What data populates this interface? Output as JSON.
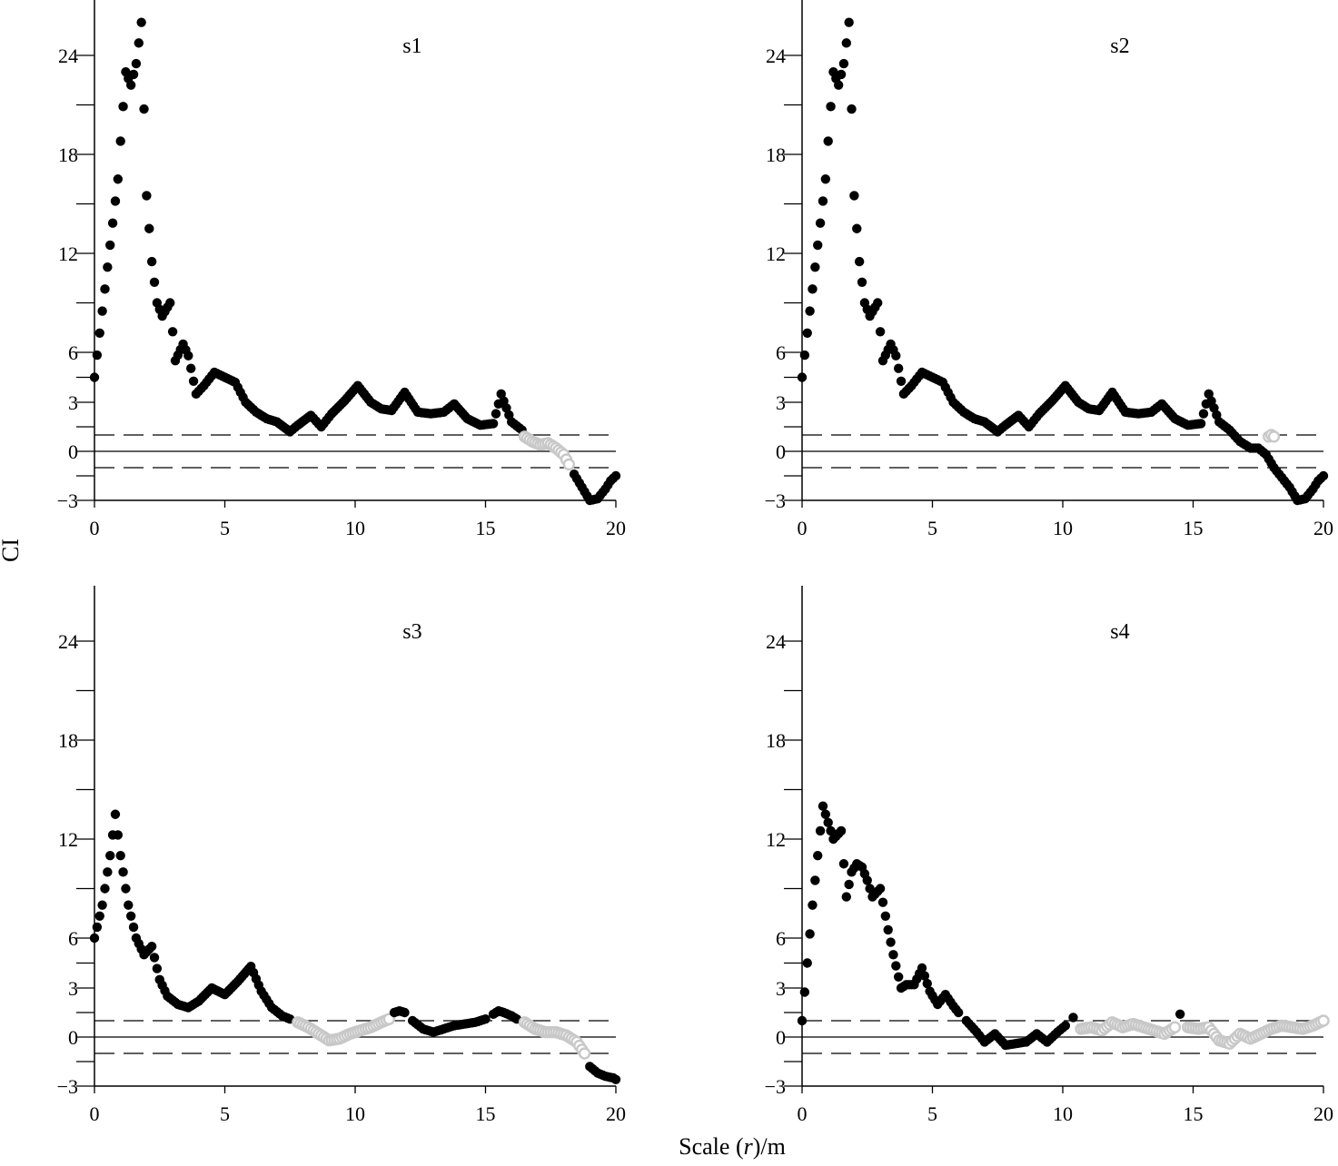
{
  "figure": {
    "xlabel_prefix": "Scale (",
    "xlabel_var": "r",
    "xlabel_suffix": ")/m",
    "ylabel": "CI"
  },
  "chart_data": [
    {
      "type": "scatter",
      "title": "s1",
      "xlim": [
        0,
        20
      ],
      "ylim": [
        -3,
        27
      ],
      "xticks": [
        0,
        5,
        10,
        15,
        20
      ],
      "yticks": [
        -3,
        0,
        3,
        6,
        12,
        18,
        24
      ],
      "ytick_labels": [
        "−3",
        "0",
        "3",
        "6",
        "12",
        "18",
        "24"
      ],
      "reference_lines": {
        "solid": 0,
        "dashed": [
          -1,
          1
        ]
      },
      "marker_colors": {
        "significant": "#000000",
        "not_significant": "#c8c8c8"
      },
      "series": [
        {
          "x": [
            0,
            0.3,
            0.6,
            0.9,
            1.0,
            1.2,
            1.4,
            1.6,
            1.8,
            2.0,
            2.2,
            2.4,
            2.6,
            2.9,
            3.1,
            3.4,
            3.6,
            3.9,
            4.2,
            4.6,
            5.0,
            5.4,
            5.8,
            6.2,
            6.6,
            7.0,
            7.5,
            7.8,
            8.3,
            8.7,
            9.1,
            9.6,
            10.1,
            10.6,
            11.0,
            11.4,
            11.9,
            12.4,
            12.9,
            13.4,
            13.8,
            14.3,
            14.8,
            15.3,
            15.6,
            16.0,
            16.4
          ],
          "y": [
            4.5,
            8.5,
            12.5,
            16.5,
            18.8,
            23.0,
            22.2,
            23.5,
            26.0,
            15.5,
            11.5,
            9.0,
            8.2,
            9.0,
            5.5,
            6.5,
            5.8,
            3.5,
            4.0,
            4.8,
            4.5,
            4.2,
            3.0,
            2.4,
            2.0,
            1.8,
            1.2,
            1.6,
            2.2,
            1.5,
            2.3,
            3.1,
            4.0,
            3.0,
            2.6,
            2.5,
            3.6,
            2.4,
            2.3,
            2.4,
            2.9,
            2.0,
            1.6,
            1.7,
            3.5,
            1.8,
            1.3
          ]
        },
        {
          "x": [
            16.5,
            16.8,
            17.1,
            17.4,
            17.7,
            18.0,
            18.2
          ],
          "y": [
            0.9,
            0.6,
            0.4,
            0.5,
            0.2,
            -0.2,
            -0.8
          ]
        },
        {
          "x": [
            18.4,
            18.7,
            19.0,
            19.3,
            19.6,
            19.8,
            20.0
          ],
          "y": [
            -1.4,
            -2.2,
            -3.0,
            -2.9,
            -2.3,
            -1.8,
            -1.5
          ]
        }
      ]
    },
    {
      "type": "scatter",
      "title": "s2",
      "xlim": [
        0,
        20
      ],
      "ylim": [
        -3,
        27
      ],
      "xticks": [
        0,
        5,
        10,
        15,
        20
      ],
      "yticks": [
        -3,
        0,
        3,
        6,
        12,
        18,
        24
      ],
      "ytick_labels": [
        "−3",
        "0",
        "3",
        "6",
        "12",
        "18",
        "24"
      ],
      "reference_lines": {
        "solid": 0,
        "dashed": [
          -1,
          1
        ]
      },
      "marker_colors": {
        "significant": "#000000",
        "not_significant": "#c8c8c8"
      },
      "series": [
        {
          "x": [
            0,
            0.3,
            0.6,
            0.9,
            1.0,
            1.2,
            1.4,
            1.6,
            1.8,
            2.0,
            2.2,
            2.4,
            2.6,
            2.9,
            3.1,
            3.4,
            3.6,
            3.9,
            4.2,
            4.6,
            5.0,
            5.4,
            5.8,
            6.2,
            6.6,
            7.0,
            7.5,
            7.8,
            8.3,
            8.7,
            9.1,
            9.6,
            10.1,
            10.6,
            11.0,
            11.4,
            11.9,
            12.4,
            12.9,
            13.4,
            13.8,
            14.3,
            14.8,
            15.3,
            15.6,
            16.0,
            16.4,
            16.8,
            17.2,
            17.5,
            17.8,
            18.1,
            18.4,
            18.7,
            19.0,
            19.3,
            19.6,
            19.8,
            20.0
          ],
          "y": [
            4.5,
            8.5,
            12.5,
            16.5,
            18.8,
            23.0,
            22.2,
            23.5,
            26.0,
            15.5,
            11.5,
            9.0,
            8.2,
            9.0,
            5.5,
            6.5,
            5.8,
            3.5,
            4.0,
            4.8,
            4.5,
            4.2,
            3.0,
            2.4,
            2.0,
            1.8,
            1.2,
            1.6,
            2.2,
            1.5,
            2.3,
            3.1,
            4.0,
            3.0,
            2.6,
            2.5,
            3.6,
            2.4,
            2.3,
            2.4,
            2.9,
            2.0,
            1.6,
            1.7,
            3.5,
            1.8,
            1.3,
            0.6,
            0.2,
            0.2,
            -0.2,
            -1.0,
            -1.6,
            -2.2,
            -3.0,
            -2.9,
            -2.3,
            -1.8,
            -1.5
          ]
        },
        {
          "x": [
            17.9,
            18.0,
            18.1
          ],
          "y": [
            0.9,
            1.0,
            0.9
          ]
        }
      ]
    },
    {
      "type": "scatter",
      "title": "s3",
      "xlim": [
        0,
        20
      ],
      "ylim": [
        -3,
        27
      ],
      "xticks": [
        0,
        5,
        10,
        15,
        20
      ],
      "yticks": [
        -3,
        0,
        3,
        6,
        12,
        18,
        24
      ],
      "ytick_labels": [
        "−3",
        "0",
        "3",
        "6",
        "12",
        "18",
        "24"
      ],
      "reference_lines": {
        "solid": 0,
        "dashed": [
          -1,
          1
        ]
      },
      "marker_colors": {
        "significant": "#000000",
        "not_significant": "#c8c8c8"
      },
      "series": [
        {
          "x": [
            0,
            0.3,
            0.6,
            0.8,
            1.0,
            1.3,
            1.6,
            1.9,
            2.2,
            2.5,
            2.8,
            3.2,
            3.6,
            4.0,
            4.5,
            5.0,
            5.5,
            6.0,
            6.4,
            6.8,
            7.2,
            7.5
          ],
          "y": [
            6.0,
            8.0,
            11.0,
            13.5,
            11.0,
            8.0,
            6.0,
            5.0,
            5.5,
            3.5,
            2.5,
            2.0,
            1.8,
            2.2,
            3.0,
            2.6,
            3.4,
            4.3,
            2.8,
            1.8,
            1.3,
            1.1
          ]
        },
        {
          "x": [
            7.8,
            8.2,
            8.6,
            9.0,
            9.4,
            9.8,
            10.2,
            10.6,
            11.0,
            11.3
          ],
          "y": [
            0.9,
            0.6,
            0.2,
            -0.2,
            -0.1,
            0.2,
            0.4,
            0.6,
            0.9,
            1.1
          ]
        },
        {
          "x": [
            11.5,
            11.7,
            11.9
          ],
          "y": [
            1.5,
            1.6,
            1.5
          ]
        },
        {
          "x": [
            12.2,
            12.6,
            13.0,
            13.4,
            13.8,
            14.2,
            14.6,
            15.0
          ],
          "y": [
            1.0,
            0.5,
            0.3,
            0.5,
            0.7,
            0.8,
            0.9,
            1.1
          ]
        },
        {
          "x": [
            15.3,
            15.5,
            15.7,
            16.0,
            16.2
          ],
          "y": [
            1.4,
            1.6,
            1.5,
            1.3,
            1.1
          ]
        },
        {
          "x": [
            16.5,
            16.9,
            17.3,
            17.7,
            18.1,
            18.5,
            18.8
          ],
          "y": [
            0.9,
            0.5,
            0.3,
            0.3,
            0.1,
            -0.3,
            -1.0
          ]
        },
        {
          "x": [
            19.0,
            19.3,
            19.6,
            19.9,
            20.0
          ],
          "y": [
            -1.8,
            -2.2,
            -2.4,
            -2.5,
            -2.6
          ]
        }
      ]
    },
    {
      "type": "scatter",
      "title": "s4",
      "xlim": [
        0,
        20
      ],
      "ylim": [
        -3,
        27
      ],
      "xticks": [
        0,
        5,
        10,
        15,
        20
      ],
      "yticks": [
        -3,
        0,
        3,
        6,
        12,
        18,
        24
      ],
      "ytick_labels": [
        "−3",
        "0",
        "3",
        "6",
        "12",
        "18",
        "24"
      ],
      "reference_lines": {
        "solid": 0,
        "dashed": [
          -1,
          1
        ]
      },
      "marker_colors": {
        "significant": "#000000",
        "not_significant": "#c8c8c8"
      },
      "series": [
        {
          "x": [
            0,
            0.2,
            0.4,
            0.6,
            0.8,
            1.0,
            1.2,
            1.5,
            1.7,
            1.9,
            2.1,
            2.3,
            2.5,
            2.7,
            3.0,
            3.3,
            3.5,
            3.8,
            4.0,
            4.3,
            4.6,
            4.9,
            5.2,
            5.5,
            5.8,
            6.0
          ],
          "y": [
            1.0,
            4.5,
            8.0,
            11.0,
            14.0,
            13.0,
            12.0,
            12.5,
            8.5,
            10.0,
            10.5,
            10.3,
            9.5,
            8.5,
            9.0,
            6.5,
            5.0,
            3.0,
            3.2,
            3.2,
            4.2,
            2.8,
            2.0,
            2.6,
            1.9,
            1.5
          ]
        },
        {
          "x": [
            6.3,
            6.7,
            7.0,
            7.4,
            7.8,
            8.2,
            8.6,
            9.0,
            9.4,
            9.8,
            10.1
          ],
          "y": [
            1.0,
            0.3,
            -0.3,
            0.2,
            -0.5,
            -0.4,
            -0.3,
            0.2,
            -0.3,
            0.3,
            0.7
          ]
        },
        {
          "x": [
            10.4
          ],
          "y": [
            1.2
          ]
        },
        {
          "x": [
            10.7,
            11.1,
            11.5,
            11.9,
            12.3,
            12.7,
            13.1,
            13.5,
            13.9,
            14.3
          ],
          "y": [
            0.5,
            0.6,
            0.4,
            0.9,
            0.6,
            0.8,
            0.6,
            0.4,
            0.2,
            0.6
          ]
        },
        {
          "x": [
            14.5
          ],
          "y": [
            1.4
          ]
        },
        {
          "x": [
            14.8,
            15.2,
            15.6,
            16.0,
            16.4,
            16.8,
            17.2,
            17.6,
            18.0,
            18.4,
            18.8,
            19.2,
            19.6,
            20.0
          ],
          "y": [
            0.6,
            0.5,
            0.6,
            -0.2,
            -0.4,
            0.2,
            -0.1,
            0.2,
            0.5,
            0.7,
            0.6,
            0.5,
            0.7,
            1.0
          ]
        }
      ]
    }
  ]
}
